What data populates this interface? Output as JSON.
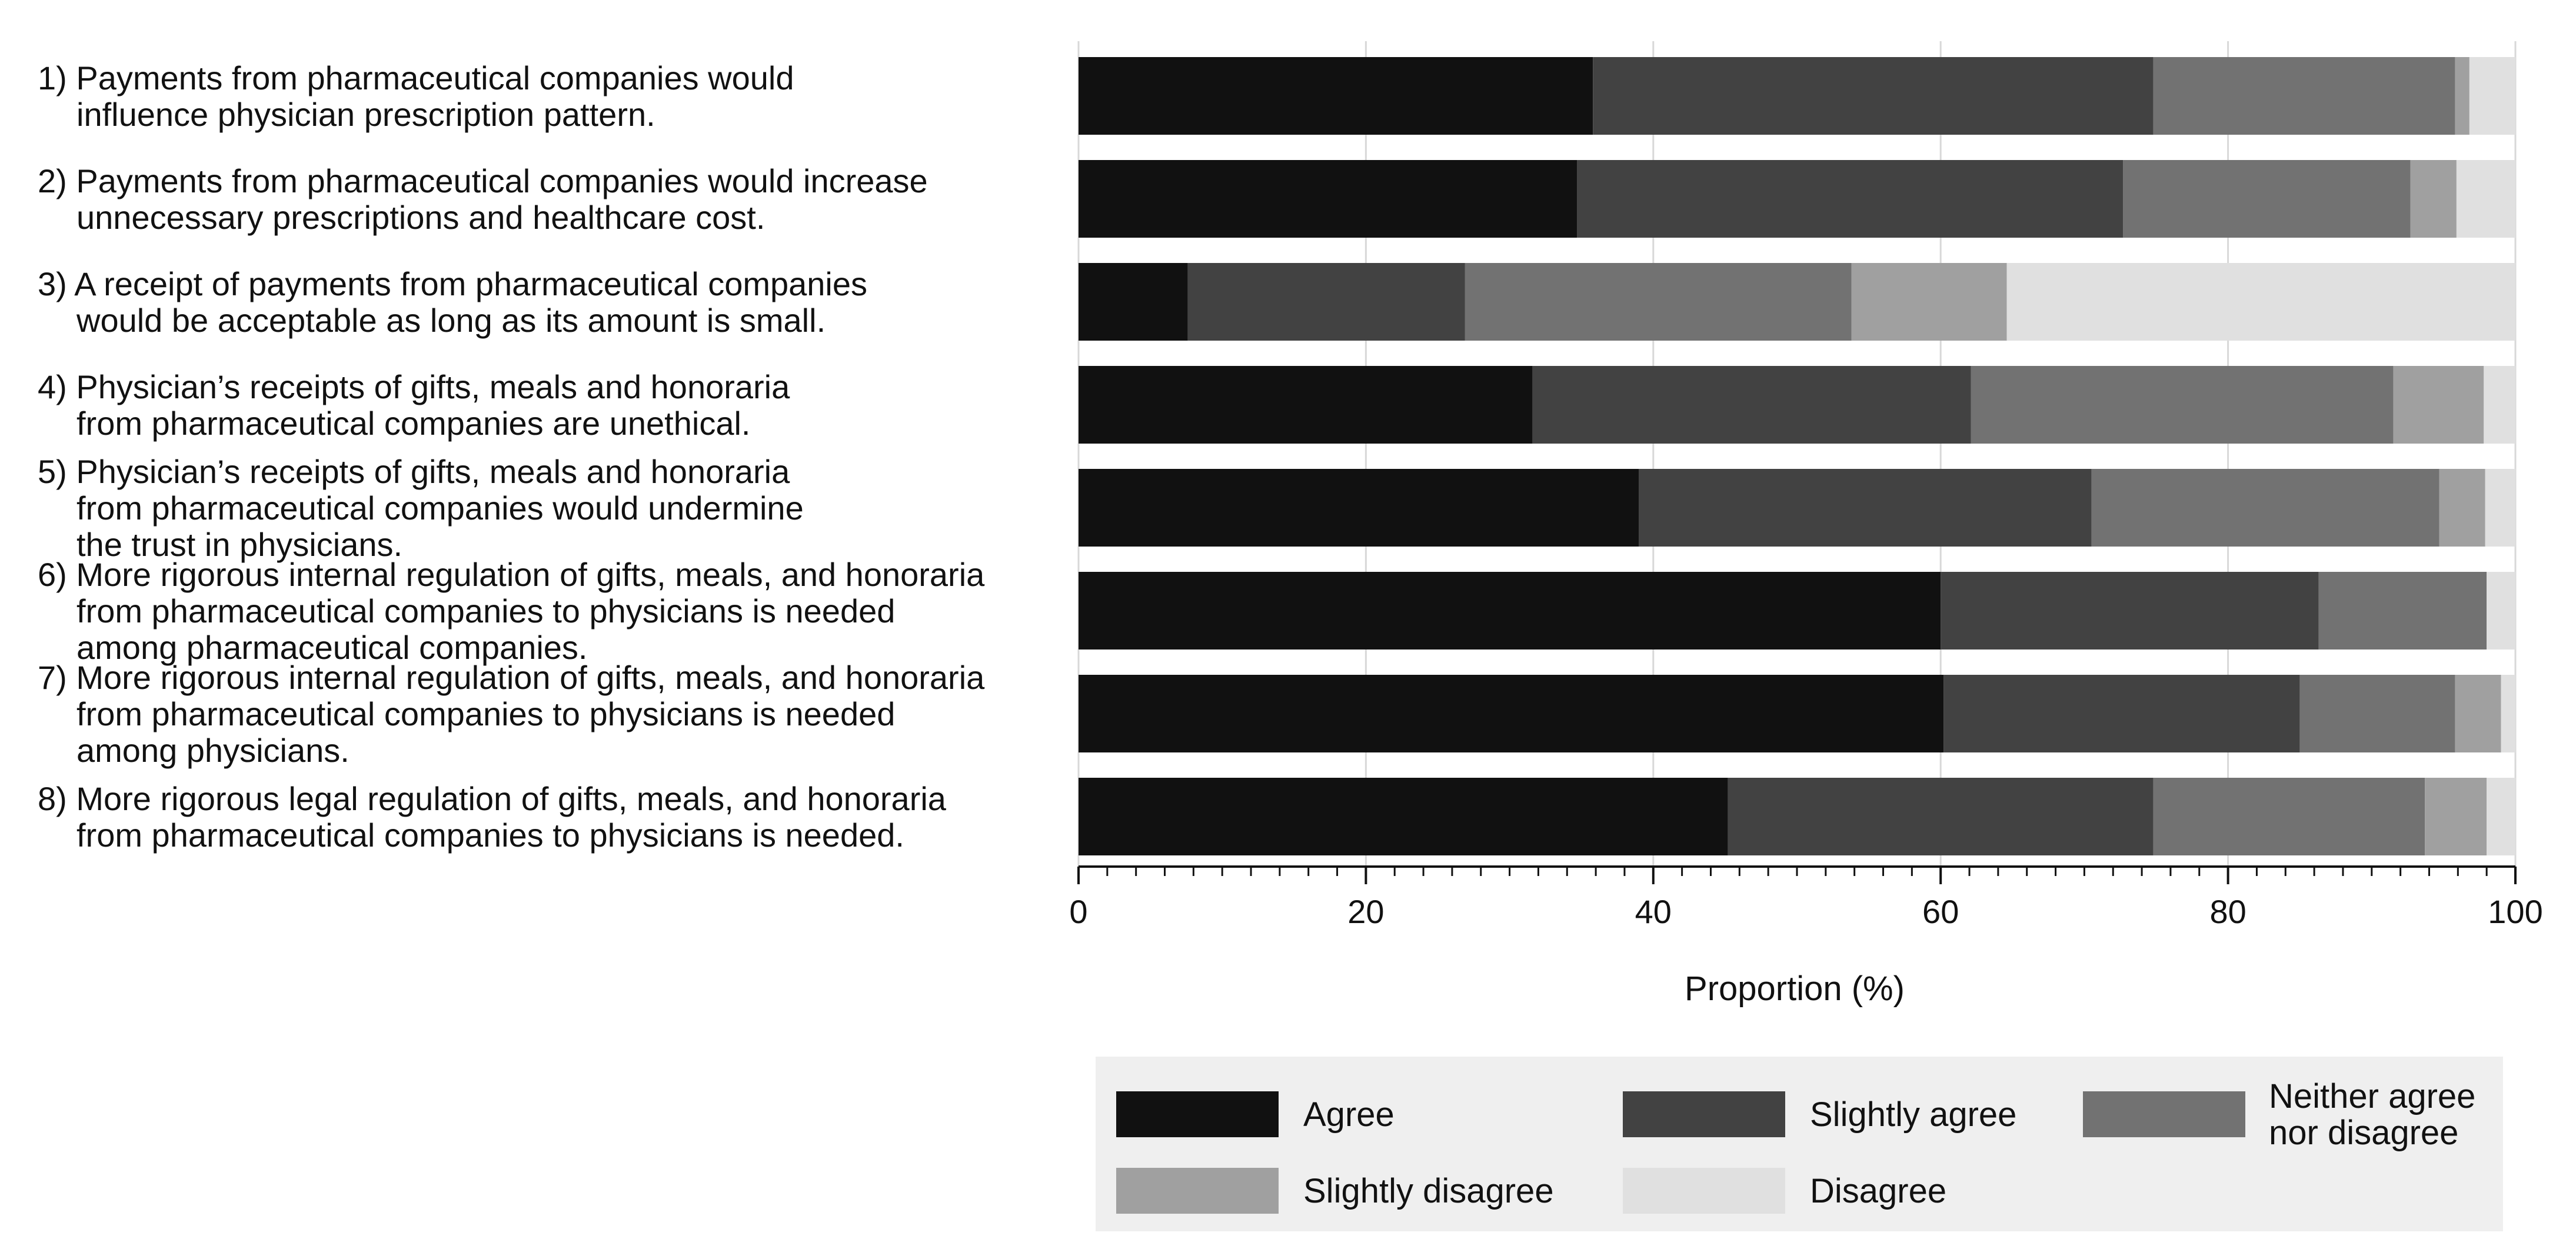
{
  "chart_data": {
    "type": "bar",
    "orientation": "horizontal",
    "stacked": true,
    "xlabel": "Proportion (%)",
    "xlim": [
      0,
      100
    ],
    "xticks": [
      0,
      20,
      40,
      60,
      80,
      100
    ],
    "grid": true,
    "legend_position": "bottom",
    "categories": [
      [
        "1) Payments from pharmaceutical companies would",
        "influence physician prescription pattern."
      ],
      [
        "2) Payments from pharmaceutical companies would increase",
        "unnecessary prescriptions and healthcare cost."
      ],
      [
        "3) A receipt of payments from pharmaceutical companies",
        "would be acceptable as long as its amount is small."
      ],
      [
        "4) Physician’s receipts of gifts, meals and honoraria",
        "from pharmaceutical companies are unethical."
      ],
      [
        "5) Physician’s receipts of gifts, meals and honoraria",
        "from pharmaceutical companies would undermine",
        "the trust in physicians."
      ],
      [
        "6) More rigorous internal regulation of gifts, meals, and honoraria",
        "from pharmaceutical companies to physicians is needed",
        "among pharmaceutical companies."
      ],
      [
        "7) More rigorous internal regulation of gifts, meals, and honoraria",
        "from pharmaceutical companies to physicians is needed",
        "among physicians."
      ],
      [
        "8) More rigorous legal regulation of gifts, meals, and honoraria",
        "from pharmaceutical companies to physicians is needed."
      ]
    ],
    "series": [
      {
        "name": "Agree",
        "color": "#111111",
        "values": [
          35.8,
          34.7,
          7.6,
          31.6,
          39.0,
          60.0,
          60.2,
          45.2
        ]
      },
      {
        "name": "Slightly agree",
        "color": "#424242",
        "values": [
          39.0,
          38.0,
          19.3,
          30.5,
          31.5,
          26.3,
          24.8,
          29.6
        ]
      },
      {
        "name": "Neither agree nor disagree",
        "color": "#727272",
        "values": [
          21.0,
          20.0,
          26.9,
          29.4,
          24.2,
          11.7,
          10.8,
          18.9
        ]
      },
      {
        "name": "Slightly disagree",
        "color": "#a0a0a0",
        "values": [
          1.0,
          3.2,
          10.8,
          6.3,
          3.2,
          0.0,
          3.2,
          4.3
        ]
      },
      {
        "name": "Disagree",
        "color": "#e0e0e0",
        "values": [
          3.2,
          4.1,
          35.4,
          2.2,
          2.1,
          2.0,
          1.0,
          2.0
        ]
      }
    ],
    "legend_labels": [
      [
        "Agree"
      ],
      [
        "Slightly agree"
      ],
      [
        "Neither agree",
        "nor disagree"
      ],
      [
        "Slightly disagree"
      ],
      [
        "Disagree"
      ]
    ]
  }
}
